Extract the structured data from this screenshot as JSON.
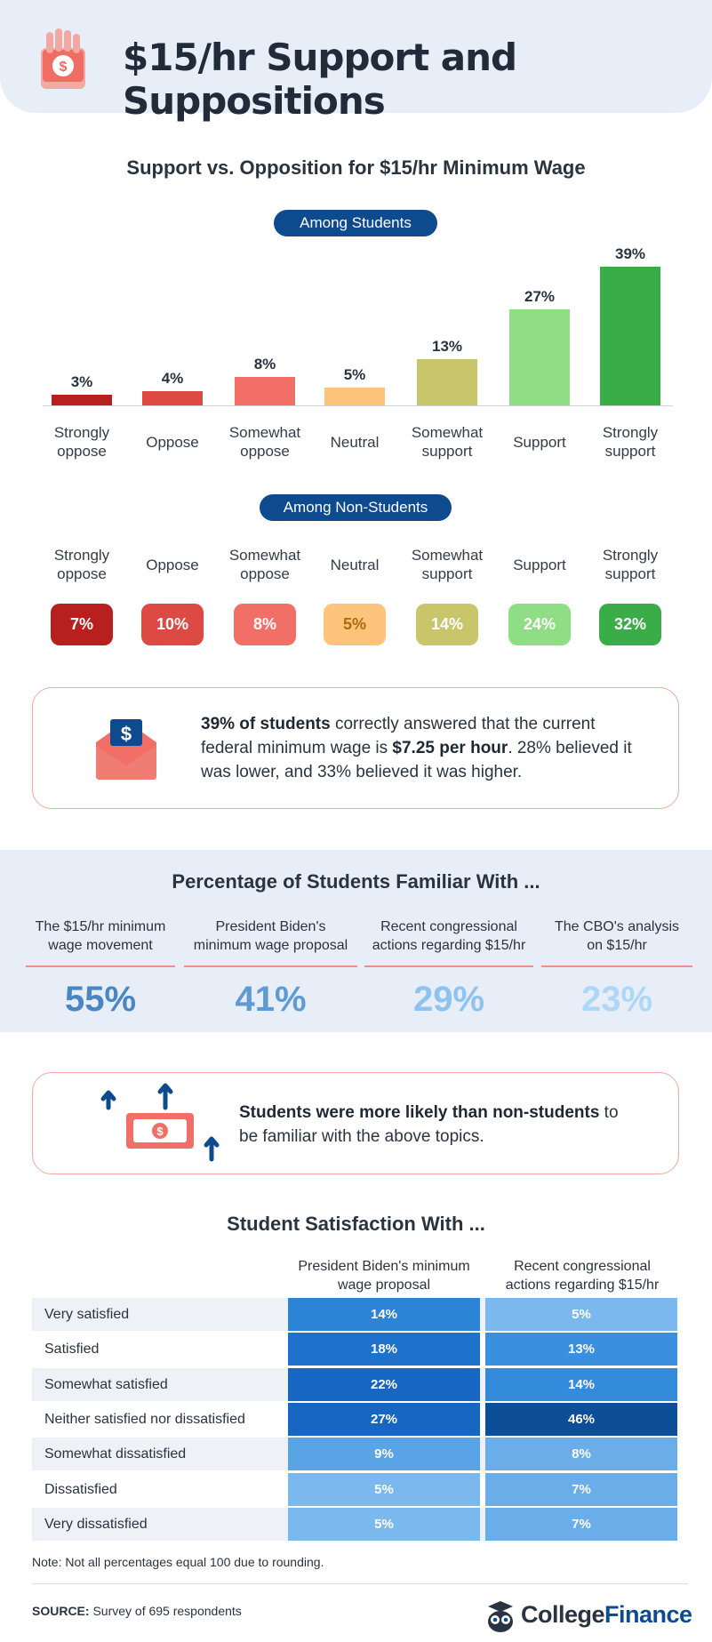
{
  "header": {
    "title": "$15/hr Support and Suppositions"
  },
  "section1": {
    "title": "Support vs. Opposition for $15/hr Minimum Wage",
    "students_pill": "Among Students",
    "nonstudents_pill": "Among Non-Students"
  },
  "chart_data": [
    {
      "type": "bar",
      "title": "Among Students",
      "categories": [
        "Strongly oppose",
        "Oppose",
        "Somewhat oppose",
        "Neutral",
        "Somewhat support",
        "Support",
        "Strongly support"
      ],
      "values": [
        3,
        4,
        8,
        5,
        13,
        27,
        39
      ],
      "labels": [
        "3%",
        "4%",
        "8%",
        "5%",
        "13%",
        "27%",
        "39%"
      ],
      "colors": [
        "#b8201f",
        "#dd4a44",
        "#f26f67",
        "#fec47b",
        "#c8c56a",
        "#8fdd84",
        "#3aad48"
      ]
    },
    {
      "type": "table",
      "title": "Among Non-Students",
      "categories": [
        "Strongly oppose",
        "Oppose",
        "Somewhat oppose",
        "Neutral",
        "Somewhat support",
        "Support",
        "Strongly support"
      ],
      "values": [
        7,
        10,
        8,
        5,
        14,
        24,
        32
      ],
      "labels": [
        "7%",
        "10%",
        "8%",
        "5%",
        "14%",
        "24%",
        "32%"
      ]
    },
    {
      "type": "table",
      "title": "Percentage of Students Familiar With ...",
      "categories": [
        "The $15/hr minimum wage movement",
        "President Biden's minimum wage proposal",
        "Recent congressional actions regarding $15/hr",
        "The CBO's analysis on $15/hr"
      ],
      "values": [
        55,
        41,
        29,
        23
      ],
      "labels": [
        "55%",
        "41%",
        "29%",
        "23%"
      ]
    },
    {
      "type": "heatmap",
      "title": "Student Satisfaction With ...",
      "columns": [
        "President Biden's minimum wage proposal",
        "Recent congressional actions regarding $15/hr"
      ],
      "rows": [
        "Very satisfied",
        "Satisfied",
        "Somewhat satisfied",
        "Neither satisfied nor dissatisfied",
        "Somewhat dissatisfied",
        "Dissatisfied",
        "Very dissatisfied"
      ],
      "values": [
        [
          14,
          5
        ],
        [
          18,
          13
        ],
        [
          22,
          14
        ],
        [
          27,
          46
        ],
        [
          9,
          8
        ],
        [
          5,
          7
        ],
        [
          5,
          7
        ]
      ],
      "labels": [
        [
          "14%",
          "5%"
        ],
        [
          "18%",
          "13%"
        ],
        [
          "22%",
          "14%"
        ],
        [
          "27%",
          "46%"
        ],
        [
          "9%",
          "8%"
        ],
        [
          "5%",
          "7%"
        ],
        [
          "5%",
          "7%"
        ]
      ]
    }
  ],
  "students_cats": [
    {
      "line1": "Strongly",
      "line2": "oppose"
    },
    {
      "line1": "Oppose",
      "line2": ""
    },
    {
      "line1": "Somewhat",
      "line2": "oppose"
    },
    {
      "line1": "Neutral",
      "line2": ""
    },
    {
      "line1": "Somewhat",
      "line2": "support"
    },
    {
      "line1": "Support",
      "line2": ""
    },
    {
      "line1": "Strongly",
      "line2": "support"
    }
  ],
  "nonstudents_badges": [
    "7%",
    "10%",
    "8%",
    "5%",
    "14%",
    "24%",
    "32%"
  ],
  "badge_colors": [
    "#b8201f",
    "#dd4a44",
    "#f26f67",
    "#fec47b",
    "#c8c56a",
    "#8fdd84",
    "#3aad48"
  ],
  "badge_text_colors": [
    "#ffffff",
    "#ffffff",
    "#ffffff",
    "#b06a10",
    "#ffffff",
    "#ffffff",
    "#ffffff"
  ],
  "note1": {
    "bold1": "39% of students",
    "text1": " correctly answered that the current",
    "text2": "federal minimum wage is ",
    "bold2": "$7.25 per hour",
    "text3": ". 28% believed it",
    "text4": "was lower, and 33% believed it was higher."
  },
  "familiar": {
    "title": "Percentage of Students Familiar With ...",
    "items": [
      {
        "line1": "The $15/hr minimum",
        "line2": "wage movement",
        "value": "55%",
        "color": "#4a86c2"
      },
      {
        "line1": "President Biden's",
        "line2": "minimum wage proposal",
        "value": "41%",
        "color": "#5f9ad3"
      },
      {
        "line1": "Recent congressional",
        "line2": "actions regarding $15/hr",
        "value": "29%",
        "color": "#8ec2ef"
      },
      {
        "line1": "The CBO's analysis",
        "line2": "on $15/hr",
        "value": "23%",
        "color": "#aed7f7"
      }
    ]
  },
  "note2": {
    "bold": "Students were more likely than non-students",
    "text1": " to",
    "text2": "be familiar with the above topics."
  },
  "satisfaction": {
    "title": "Student Satisfaction With ...",
    "col1": {
      "line1": "President Biden's minimum",
      "line2": "wage proposal"
    },
    "col2": {
      "line1": "Recent congressional",
      "line2": "actions regarding $15/hr"
    },
    "rows": [
      {
        "label": "Very satisfied",
        "a": "14%",
        "b": "5%",
        "ca": "#2d83d6",
        "cb": "#7bb8ee"
      },
      {
        "label": "Satisfied",
        "a": "18%",
        "b": "13%",
        "ca": "#1e72cb",
        "cb": "#3a90df"
      },
      {
        "label": "Somewhat satisfied",
        "a": "22%",
        "b": "14%",
        "ca": "#1666c2",
        "cb": "#348bdc"
      },
      {
        "label": "Neither satisfied nor dissatisfied",
        "a": "27%",
        "b": "46%",
        "ca": "#1666c2",
        "cb": "#0c4f98"
      },
      {
        "label": "Somewhat dissatisfied",
        "a": "9%",
        "b": "8%",
        "ca": "#5aa3e5",
        "cb": "#6aade9"
      },
      {
        "label": "Dissatisfied",
        "a": "5%",
        "b": "7%",
        "ca": "#7bb8ee",
        "cb": "#6aade9"
      },
      {
        "label": "Very dissatisfied",
        "a": "5%",
        "b": "7%",
        "ca": "#7bb8ee",
        "cb": "#6aade9"
      }
    ]
  },
  "footnote": "Note: Not all percentages equal 100 due to rounding.",
  "source": {
    "label": "SOURCE:",
    "text": " Survey of 695 respondents"
  },
  "logo": {
    "part1": "College",
    "part2": "Finance"
  }
}
